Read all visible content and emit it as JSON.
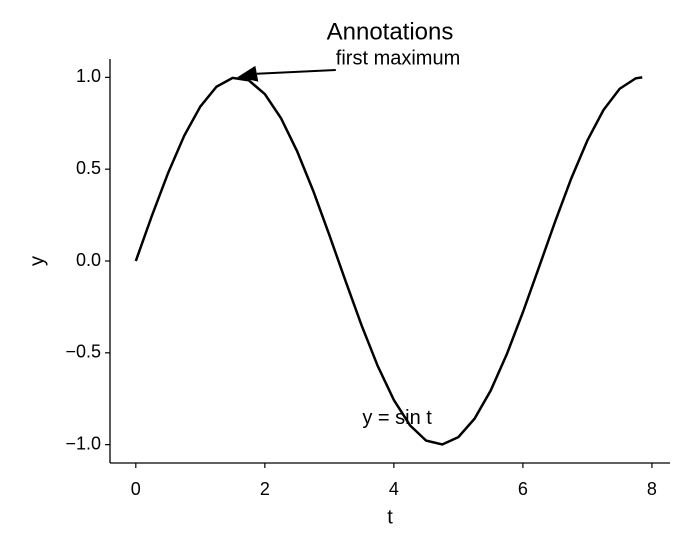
{
  "chart_data": {
    "type": "line",
    "title": "Annotations",
    "xlabel": "t",
    "ylabel": "y",
    "color": "#000000",
    "x": [
      0,
      0.25,
      0.5,
      0.75,
      1.0,
      1.25,
      1.5,
      1.75,
      2.0,
      2.25,
      2.5,
      2.75,
      3.0,
      3.25,
      3.5,
      3.75,
      4.0,
      4.25,
      4.5,
      4.75,
      5.0,
      5.25,
      5.5,
      5.75,
      6.0,
      6.25,
      6.5,
      6.75,
      7.0,
      7.25,
      7.5,
      7.75,
      7.85
    ],
    "values": [
      0,
      0.247,
      0.479,
      0.682,
      0.841,
      0.949,
      0.997,
      0.984,
      0.909,
      0.778,
      0.598,
      0.382,
      0.141,
      -0.108,
      -0.351,
      -0.572,
      -0.757,
      -0.895,
      -0.978,
      -0.999,
      -0.959,
      -0.859,
      -0.706,
      -0.508,
      -0.279,
      -0.033,
      0.215,
      0.45,
      0.657,
      0.823,
      0.938,
      0.995,
      1.0
    ],
    "xlim": [
      -0.4,
      8.28
    ],
    "ylim": [
      -1.1,
      1.1
    ],
    "xticks": [
      0,
      2,
      4,
      6,
      8
    ],
    "yticks": [
      {
        "value": 1,
        "label": "1.0"
      },
      {
        "value": 0.5,
        "label": "0.5"
      },
      {
        "value": 0,
        "label": "0.0"
      },
      {
        "value": -0.5,
        "label": "−0.5"
      },
      {
        "value": -1,
        "label": "−1.0"
      }
    ],
    "grid": false,
    "annotations": [
      {
        "text": "first maximum",
        "xy": [
          1.5708,
          1
        ],
        "xytext": [
          3.1,
          1.1
        ]
      },
      {
        "text": "y = sin t",
        "xytext": [
          4.05,
          -0.86
        ]
      }
    ]
  }
}
